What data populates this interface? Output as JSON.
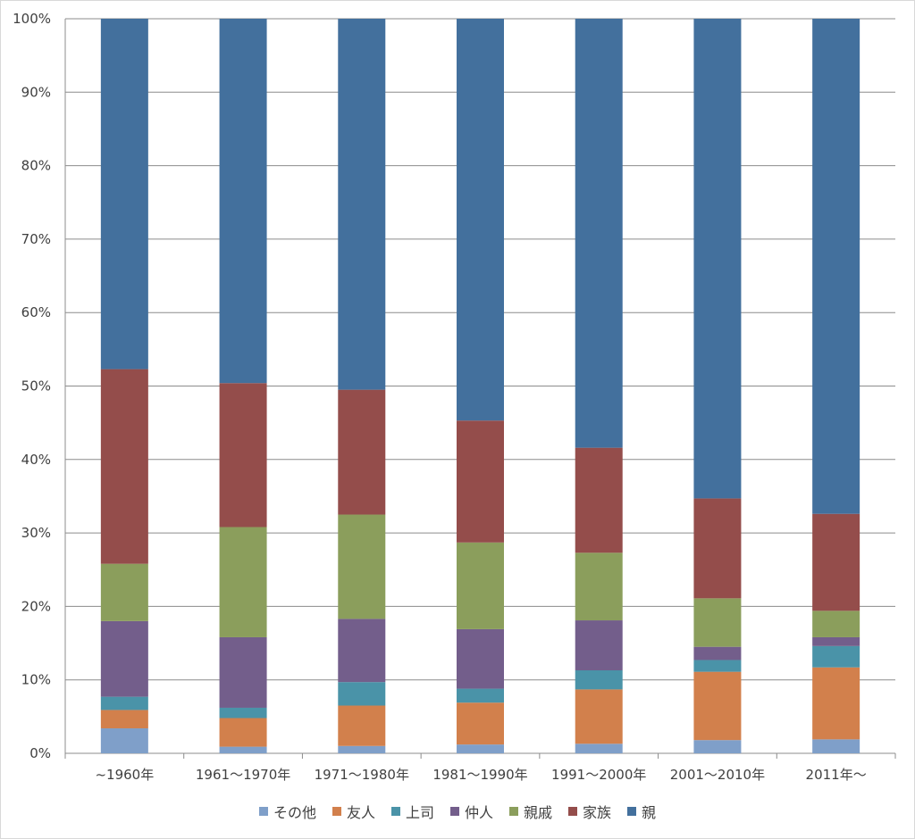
{
  "chart_data": {
    "type": "bar",
    "stacked": true,
    "percent": true,
    "categories": [
      "~1960年",
      "1961～1970年",
      "1971～1980年",
      "1981～1990年",
      "1991～2000年",
      "2001～2010年",
      "2011年～"
    ],
    "series": [
      {
        "name": "その他",
        "color": "#7f9fc9",
        "values": [
          3.4,
          0.9,
          1.0,
          1.2,
          1.3,
          1.8,
          1.9
        ]
      },
      {
        "name": "友人",
        "color": "#d2804c",
        "values": [
          2.5,
          3.9,
          5.5,
          5.7,
          7.4,
          9.3,
          9.8
        ]
      },
      {
        "name": "上司",
        "color": "#4a93a8",
        "values": [
          1.8,
          1.4,
          3.2,
          1.9,
          2.6,
          1.6,
          2.9
        ]
      },
      {
        "name": "仲人",
        "color": "#735e8b",
        "values": [
          10.3,
          9.6,
          8.6,
          8.1,
          6.8,
          1.8,
          1.2
        ]
      },
      {
        "name": "親戚",
        "color": "#8b9e5c",
        "values": [
          7.8,
          15.0,
          14.2,
          11.8,
          9.2,
          6.6,
          3.6
        ]
      },
      {
        "name": "家族",
        "color": "#944d4b",
        "values": [
          26.5,
          19.6,
          17.0,
          16.6,
          14.3,
          13.6,
          13.2
        ]
      },
      {
        "name": "親",
        "color": "#43709d",
        "values": [
          47.7,
          49.6,
          50.5,
          54.7,
          58.4,
          65.3,
          67.4
        ]
      }
    ],
    "yticks": [
      "0%",
      "10%",
      "20%",
      "30%",
      "40%",
      "50%",
      "60%",
      "70%",
      "80%",
      "90%",
      "100%"
    ],
    "ylim": [
      0,
      100
    ],
    "grid": true,
    "legend_position": "bottom"
  }
}
